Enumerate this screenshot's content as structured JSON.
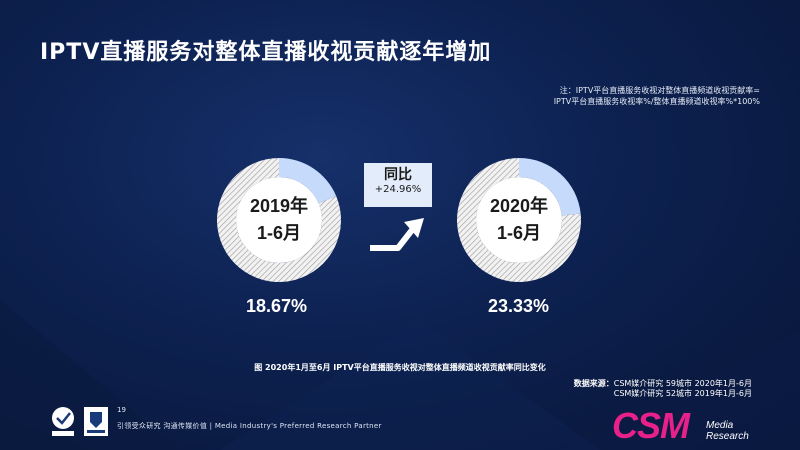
{
  "title": "IPTV直播服务对整体直播收视贡献逐年增加",
  "note": {
    "line1": "注：IPTV平台直播服务收视对整体直播频道收视贡献率=",
    "line2": "IPTV平台直播服务收视率%/整体直播频道收视率%*100%"
  },
  "chart_data": {
    "type": "pie",
    "donuts": [
      {
        "period_year": "2019年",
        "period_months": "1-6月",
        "value": 18.67,
        "value_label": "18.67%"
      },
      {
        "period_year": "2020年",
        "period_months": "1-6月",
        "value": 23.33,
        "value_label": "23.33%"
      }
    ],
    "yoy_label": "同比",
    "yoy_value": "+24.96%",
    "caption": "图  2020年1月至6月 IPTV平台直播服务收视对整体直播频道收视贡献率同比变化",
    "colors": {
      "highlight": "#c6dbfb",
      "remainder": "#f2f2f2",
      "hatch": "#9a9a9a"
    }
  },
  "source": {
    "label": "数据来源：",
    "line1": "CSM媒介研究 59城市 2020年1月-6月",
    "line2": "CSM媒介研究 52城市 2019年1月-6月"
  },
  "footer": {
    "page": "19",
    "tagline": "引领受众研究  沟通传媒价值 | Media Industry's Preferred Research Partner",
    "logo": "CSM",
    "logo_sub1": "Media",
    "logo_sub2": "Research"
  }
}
